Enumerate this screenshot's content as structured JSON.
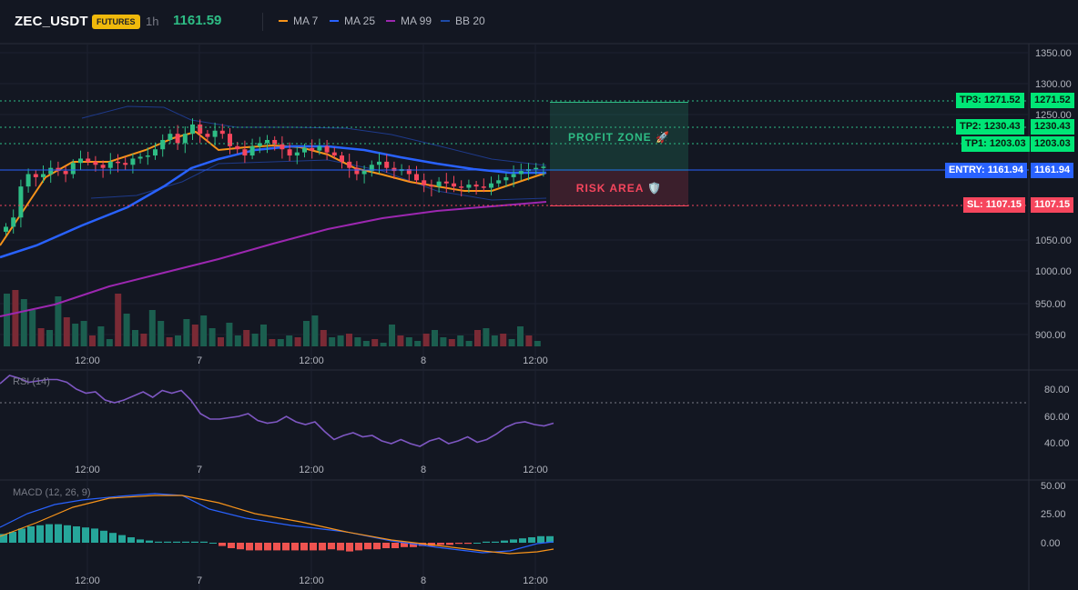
{
  "header": {
    "symbol": "ZEC_USDT",
    "badge": "FUTURES",
    "timeframe": "1h",
    "price": "1161.59",
    "legend": [
      {
        "label": "MA 7",
        "color": "#f7931a"
      },
      {
        "label": "MA 25",
        "color": "#2962ff"
      },
      {
        "label": "MA 99",
        "color": "#9c27b0"
      },
      {
        "label": "BB 20",
        "color": "#1e3a8a"
      }
    ]
  },
  "price_axis": [
    "1350.00",
    "1300.00",
    "1250.00",
    "1050.00",
    "1000.00",
    "950.00",
    "900.00"
  ],
  "levels": {
    "tp3": {
      "label": "TP3: 1271.52",
      "value": "1271.52",
      "price": 1271.52
    },
    "tp2": {
      "label": "TP2: 1230.43",
      "value": "1230.43",
      "price": 1230.43
    },
    "tp1": {
      "label": "TP1: 1203.03",
      "value": "1203.03",
      "price": 1203.03
    },
    "entry": {
      "label": "ENTRY: 1161.94",
      "value": "1161.94",
      "price": 1161.94
    },
    "sl": {
      "label": "SL: 1107.15",
      "value": "1107.15",
      "price": 1107.15
    }
  },
  "zones": {
    "profit": "PROFIT ZONE 🚀",
    "risk": "RISK AREA 🛡️"
  },
  "time_axis": [
    "12:00",
    "7",
    "12:00",
    "8",
    "12:00"
  ],
  "rsi": {
    "title": "RSI (14)",
    "axis": [
      "80.00",
      "60.00",
      "40.00"
    ],
    "values": [
      84,
      90,
      88,
      85,
      86,
      87,
      87,
      85,
      80,
      77,
      78,
      72,
      70,
      72,
      75,
      78,
      74,
      79,
      77,
      79,
      72,
      62,
      58,
      58,
      59,
      60,
      62,
      57,
      55,
      56,
      60,
      56,
      54,
      56,
      49,
      43,
      46,
      48,
      45,
      46,
      42,
      40,
      43,
      40,
      38,
      42,
      44,
      40,
      42,
      45,
      41,
      43,
      47,
      52,
      55,
      56,
      54,
      53,
      55
    ]
  },
  "macd": {
    "title": "MACD (12, 26, 9)",
    "axis": [
      "50.00",
      "25.00",
      "0.00"
    ]
  },
  "colors": {
    "up": "#2ebd85",
    "down": "#f6465d",
    "bg": "#131722",
    "grid": "#1e222d"
  }
}
